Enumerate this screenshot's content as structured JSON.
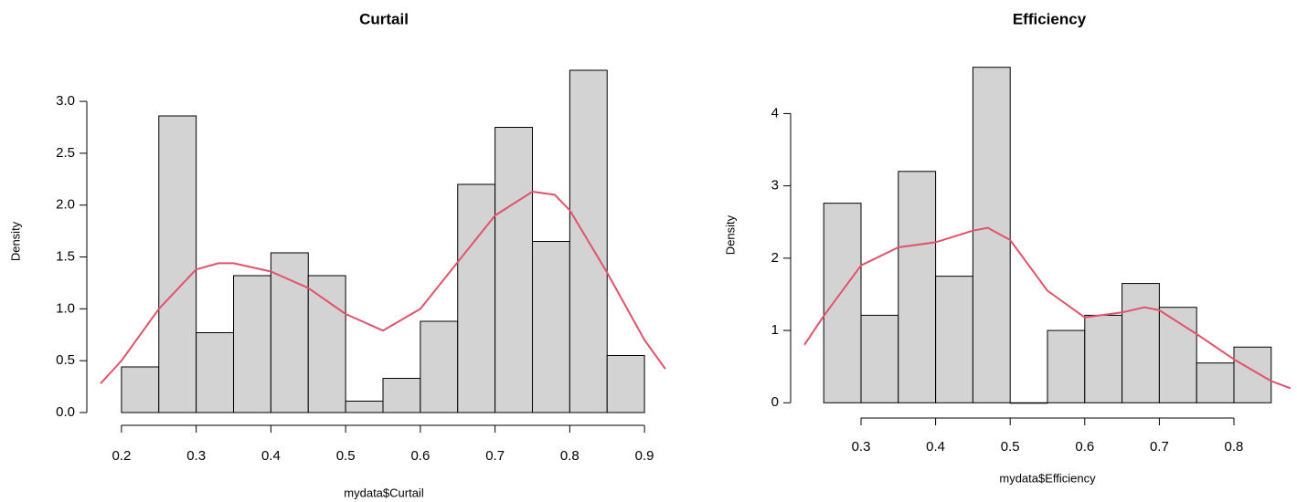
{
  "chart_data": [
    {
      "type": "histogram",
      "title": "Curtail",
      "xlabel": "mydata$Curtail",
      "ylabel": "Density",
      "bins": [
        0.2,
        0.25,
        0.3,
        0.35,
        0.4,
        0.45,
        0.5,
        0.55,
        0.6,
        0.65,
        0.7,
        0.75,
        0.8,
        0.85,
        0.9
      ],
      "counts": [
        0.44,
        2.86,
        0.77,
        1.32,
        1.54,
        1.32,
        0.11,
        0.33,
        0.88,
        2.2,
        2.75,
        1.65,
        3.3,
        0.55
      ],
      "color": "#d3d3d3",
      "density": {
        "color": "#df536b",
        "x": [
          0.172,
          0.2,
          0.25,
          0.3,
          0.33,
          0.35,
          0.4,
          0.45,
          0.5,
          0.55,
          0.6,
          0.65,
          0.7,
          0.75,
          0.78,
          0.8,
          0.85,
          0.9,
          0.928
        ],
        "values": [
          0.28,
          0.5,
          1.0,
          1.38,
          1.44,
          1.44,
          1.36,
          1.2,
          0.95,
          0.79,
          1.0,
          1.45,
          1.9,
          2.13,
          2.1,
          1.95,
          1.35,
          0.7,
          0.42
        ]
      },
      "xlim": [
        0.172,
        0.928
      ],
      "ylim": [
        -0.132,
        3.432
      ],
      "xticks": [
        0.2,
        0.3,
        0.4,
        0.5,
        0.6,
        0.7,
        0.8,
        0.9
      ],
      "yticks": [
        {
          "value": 0,
          "label": "0.0"
        },
        {
          "value": 0.5,
          "label": "0.5"
        },
        {
          "value": 1,
          "label": "1.0"
        },
        {
          "value": 1.5,
          "label": "1.5"
        },
        {
          "value": 2,
          "label": "2.0"
        },
        {
          "value": 2.5,
          "label": "2.5"
        },
        {
          "value": 3,
          "label": "3.0"
        }
      ]
    },
    {
      "type": "histogram",
      "title": "Efficiency",
      "xlabel": "mydata$Efficiency",
      "ylabel": "Density",
      "bins": [
        0.25,
        0.3,
        0.35,
        0.4,
        0.45,
        0.5,
        0.55,
        0.6,
        0.65,
        0.7,
        0.75,
        0.8,
        0.85
      ],
      "counts": [
        2.76,
        1.21,
        3.2,
        1.75,
        4.64,
        0,
        1.0,
        1.21,
        1.65,
        1.32,
        0.55,
        0.77
      ],
      "color": "#d3d3d3",
      "density": {
        "color": "#df536b",
        "x": [
          0.224,
          0.25,
          0.3,
          0.35,
          0.4,
          0.45,
          0.47,
          0.5,
          0.55,
          0.6,
          0.65,
          0.68,
          0.7,
          0.75,
          0.8,
          0.85,
          0.876
        ],
        "values": [
          0.8,
          1.2,
          1.9,
          2.15,
          2.22,
          2.38,
          2.42,
          2.25,
          1.55,
          1.18,
          1.25,
          1.32,
          1.28,
          0.95,
          0.6,
          0.3,
          0.2
        ]
      },
      "xlim": [
        0.224,
        0.876
      ],
      "ylim": [
        -0.186,
        4.826
      ],
      "xticks": [
        0.3,
        0.4,
        0.5,
        0.6,
        0.7,
        0.8
      ],
      "yticks": [
        0,
        1,
        2,
        3,
        4
      ]
    }
  ]
}
